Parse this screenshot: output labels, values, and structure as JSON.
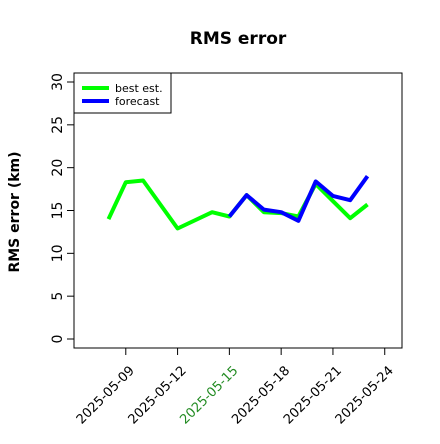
{
  "chart_data": {
    "type": "line",
    "title": "RMS error",
    "ylabel": "RMS error (km)",
    "xlabel": "",
    "ylim": [
      0,
      30
    ],
    "yticks": [
      0,
      5,
      10,
      15,
      20,
      25,
      30
    ],
    "xlim": [
      "2025-05-06",
      "2025-05-25"
    ],
    "xtick_labels": [
      "2025-05-09",
      "2025-05-12",
      "2025-05-15",
      "2025-05-18",
      "2025-05-21",
      "2025-05-24"
    ],
    "highlight_tick": "2025-05-15",
    "highlight_color": "#228b22",
    "legend_position": "top-left",
    "grid": false,
    "series": [
      {
        "name": "best est.",
        "color": "#00ff00",
        "points": [
          [
            "2025-05-08",
            14.0
          ],
          [
            "2025-05-09",
            18.3
          ],
          [
            "2025-05-10",
            18.5
          ],
          [
            "2025-05-12",
            12.9
          ],
          [
            "2025-05-14",
            14.8
          ],
          [
            "2025-05-15",
            14.3
          ],
          [
            "2025-05-16",
            16.8
          ],
          [
            "2025-05-17",
            14.8
          ],
          [
            "2025-05-18",
            14.7
          ],
          [
            "2025-05-19",
            14.3
          ],
          [
            "2025-05-20",
            18.1
          ],
          [
            "2025-05-21",
            16.1
          ],
          [
            "2025-05-22",
            14.1
          ],
          [
            "2025-05-23",
            15.7
          ]
        ]
      },
      {
        "name": "forecast",
        "color": "#0000ff",
        "points": [
          [
            "2025-05-15",
            14.3
          ],
          [
            "2025-05-16",
            16.8
          ],
          [
            "2025-05-17",
            15.1
          ],
          [
            "2025-05-18",
            14.8
          ],
          [
            "2025-05-19",
            13.8
          ],
          [
            "2025-05-20",
            18.4
          ],
          [
            "2025-05-21",
            16.7
          ],
          [
            "2025-05-22",
            16.2
          ],
          [
            "2025-05-23",
            19.0
          ]
        ]
      }
    ]
  }
}
